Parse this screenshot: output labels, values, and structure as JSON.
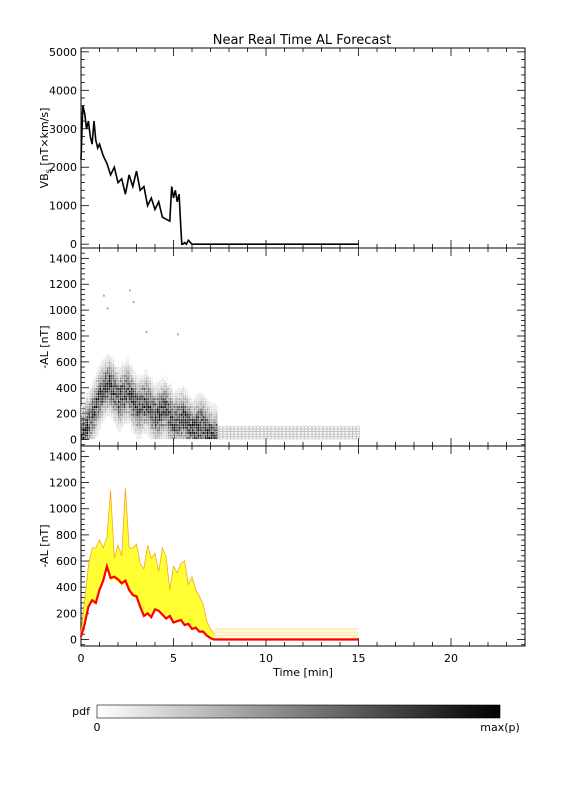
{
  "title": "Near Real Time AL Forecast",
  "chart_data": [
    {
      "type": "line",
      "ylabel": "VB_s [nT×km/s]",
      "ylabel_main": "VB",
      "ylabel_sub": "s",
      "ylabel_rest": " [nT×km/s]",
      "xlim": [
        0,
        24
      ],
      "ylim": [
        -100,
        5100
      ],
      "yticks": [
        0,
        1000,
        2000,
        3000,
        4000,
        5000
      ],
      "xticks": [
        0,
        5,
        10,
        15,
        20
      ],
      "series": [
        {
          "color": "#000000",
          "x": [
            0.0,
            0.1,
            0.2,
            0.3,
            0.4,
            0.5,
            0.6,
            0.7,
            0.8,
            0.9,
            1.0,
            1.2,
            1.4,
            1.6,
            1.8,
            2.0,
            2.2,
            2.4,
            2.6,
            2.8,
            3.0,
            3.2,
            3.4,
            3.6,
            3.8,
            4.0,
            4.2,
            4.4,
            4.6,
            4.8,
            4.9,
            5.0,
            5.1,
            5.2,
            5.3,
            5.4,
            5.45,
            5.5,
            5.6,
            5.7,
            5.8,
            6.0,
            15.0
          ],
          "y": [
            2200,
            3600,
            3400,
            3000,
            3200,
            2800,
            2600,
            3200,
            2700,
            2500,
            2600,
            2300,
            2100,
            1800,
            2000,
            1600,
            1700,
            1300,
            1800,
            1500,
            1900,
            1400,
            1500,
            1000,
            1200,
            900,
            1100,
            700,
            650,
            600,
            1500,
            1200,
            1400,
            1100,
            1300,
            400,
            0,
            0,
            40,
            0,
            100,
            0,
            0
          ]
        }
      ]
    },
    {
      "type": "heatmap",
      "ylabel": "-AL [nT]",
      "xlim": [
        0,
        24
      ],
      "ylim": [
        -50,
        1480
      ],
      "yticks": [
        0,
        200,
        400,
        600,
        800,
        1000,
        1200,
        1400
      ],
      "xticks": [
        0,
        5,
        10,
        15,
        20
      ],
      "colormap": [
        "#ffffff",
        "#000000"
      ],
      "core_x": [
        0.0,
        0.5,
        1.0,
        1.5,
        2.0,
        2.5,
        3.0,
        3.5,
        4.0,
        4.5,
        5.0,
        5.5,
        6.0,
        6.5,
        7.0,
        7.3
      ],
      "core_y": [
        20,
        150,
        330,
        420,
        300,
        360,
        230,
        280,
        170,
        230,
        120,
        160,
        60,
        110,
        20,
        0
      ],
      "tail_x": [
        7.3,
        15.0
      ],
      "tail_range": [
        0,
        80
      ],
      "outliers": [
        [
          1.2,
          1100
        ],
        [
          1.4,
          1000
        ],
        [
          2.6,
          1140
        ],
        [
          2.8,
          1050
        ],
        [
          5.2,
          800
        ],
        [
          3.5,
          820
        ]
      ]
    },
    {
      "type": "area",
      "ylabel": "-AL [nT]",
      "xlabel": "Time [min]",
      "xlim": [
        0,
        24
      ],
      "ylim": [
        -50,
        1480
      ],
      "yticks": [
        0,
        200,
        400,
        600,
        800,
        1000,
        1200,
        1400
      ],
      "xticks": [
        0,
        5,
        10,
        15,
        20
      ],
      "colors": {
        "band": "#ffff33",
        "envelope": "#f5a623",
        "median": "#ff0000"
      },
      "x": [
        0.0,
        0.2,
        0.4,
        0.6,
        0.8,
        1.0,
        1.2,
        1.4,
        1.6,
        1.8,
        2.0,
        2.2,
        2.4,
        2.6,
        2.8,
        3.0,
        3.2,
        3.4,
        3.6,
        3.8,
        4.0,
        4.2,
        4.4,
        4.6,
        4.8,
        5.0,
        5.2,
        5.4,
        5.6,
        5.8,
        6.0,
        6.2,
        6.4,
        6.6,
        6.8,
        7.0,
        7.2
      ],
      "median": [
        20,
        120,
        250,
        300,
        280,
        380,
        450,
        560,
        470,
        480,
        460,
        430,
        450,
        380,
        340,
        330,
        250,
        180,
        200,
        170,
        230,
        220,
        190,
        160,
        180,
        130,
        140,
        150,
        110,
        120,
        80,
        90,
        60,
        60,
        30,
        10,
        0
      ],
      "upper": [
        50,
        300,
        560,
        700,
        700,
        760,
        700,
        780,
        1140,
        620,
        720,
        640,
        1160,
        700,
        700,
        730,
        580,
        540,
        720,
        620,
        660,
        520,
        700,
        630,
        380,
        560,
        510,
        580,
        600,
        420,
        480,
        380,
        330,
        270,
        140,
        80,
        40
      ],
      "tail_x": [
        7.2,
        15.0
      ],
      "tail_levels": [
        10,
        30,
        50,
        80
      ]
    }
  ],
  "colorbar": {
    "label": "pdf",
    "min_label": "0",
    "max_label": "max(p)"
  }
}
